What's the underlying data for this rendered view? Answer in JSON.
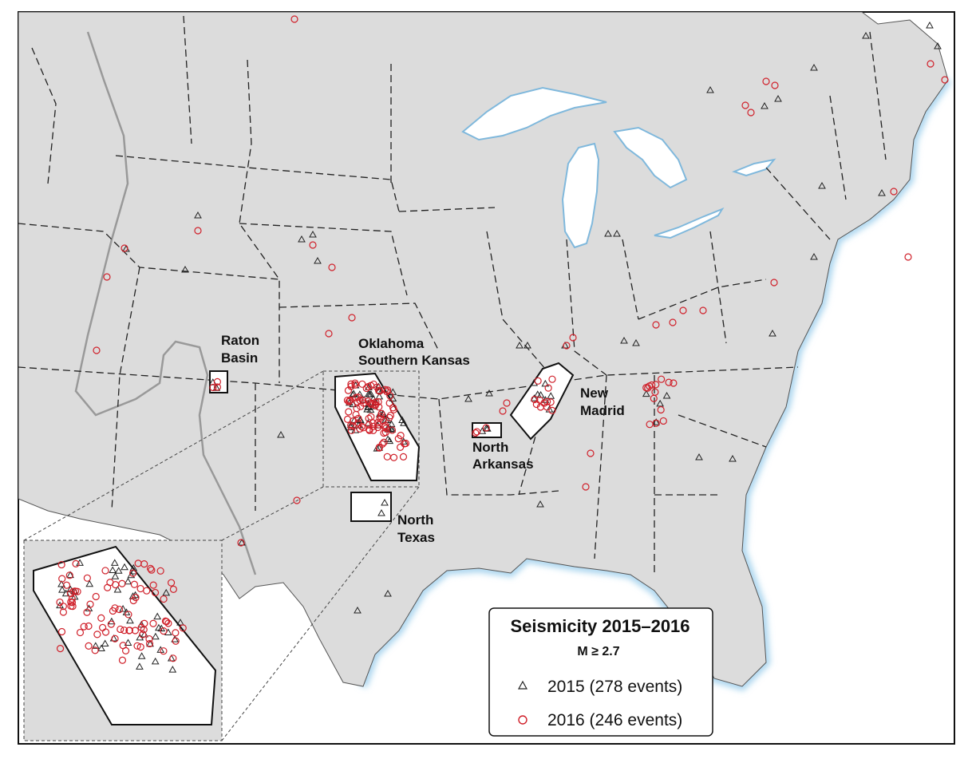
{
  "legend": {
    "title": "Seismicity  2015–2016",
    "subtitle": "M ≥ 2.7",
    "entries": [
      {
        "year": "2015",
        "label": "2015  (278 events)",
        "symbol": "triangle-icon",
        "color": "#222222"
      },
      {
        "year": "2016",
        "label": "2016  (246 events)",
        "symbol": "circle-icon",
        "color": "#d0202a"
      }
    ]
  },
  "region_labels": {
    "raton": [
      "Raton",
      "Basin"
    ],
    "oklahoma": [
      "Oklahoma",
      "Southern Kansas"
    ],
    "north_arkansas": [
      "North",
      "Arkansas"
    ],
    "new_madrid": [
      "New",
      "Madrid"
    ],
    "north_texas": [
      "North",
      "Texas"
    ]
  },
  "colors": {
    "land": "#dcdcdc",
    "water": "#ffffff",
    "coast_glow": "#a8d4ee",
    "event_2015": "#222222",
    "event_2016": "#d0202a"
  }
}
